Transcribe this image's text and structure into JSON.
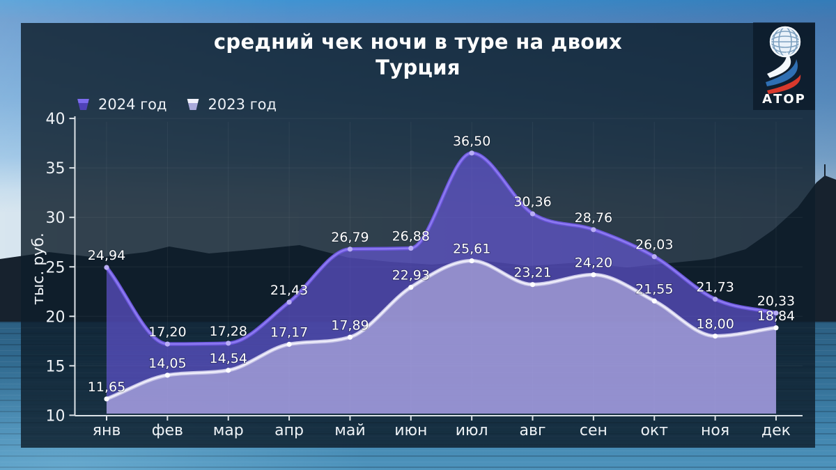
{
  "title": {
    "line1": "средний чек ночи в туре на двоих",
    "line2": "Турция"
  },
  "logo": {
    "text": "АТОР",
    "flag_colors": [
      "#ffffff",
      "#2f6fb3",
      "#d8392c"
    ]
  },
  "legend": [
    {
      "label": "2024 год",
      "swatch_top": "#7c6bee",
      "swatch_bottom": "#4f42b8"
    },
    {
      "label": "2023 год",
      "swatch_top": "#f2f2fb",
      "swatch_bottom": "#a9a9da"
    }
  ],
  "chart_data": {
    "type": "area",
    "title": "средний чек ночи в туре на двоих — Турция",
    "x": [
      "янв",
      "фев",
      "мар",
      "апр",
      "май",
      "июн",
      "июл",
      "авг",
      "сен",
      "окт",
      "ноя",
      "дек"
    ],
    "series": [
      {
        "name": "2024 год",
        "line_color": "#6a55d9",
        "line_highlight": "#8d7bf2",
        "marker_color": "#b9adf6",
        "fill_color": "rgba(109,90,231,0.60)",
        "values": [
          24.94,
          17.2,
          17.28,
          21.43,
          26.79,
          26.88,
          36.5,
          30.36,
          28.76,
          26.03,
          21.73,
          20.33
        ]
      },
      {
        "name": "2023 год",
        "line_color": "#c6c3e6",
        "line_highlight": "#efeefa",
        "marker_color": "#ffffff",
        "fill_color": "rgba(201,197,238,0.58)",
        "values": [
          11.65,
          14.05,
          14.54,
          17.17,
          17.89,
          22.93,
          25.61,
          23.21,
          24.2,
          21.55,
          18.0,
          18.84
        ]
      }
    ],
    "ylabel": "тыс. руб.",
    "yticks": [
      10,
      15,
      20,
      25,
      30,
      35,
      40
    ],
    "ylim": [
      10,
      40
    ],
    "decimal_separator": ",",
    "grid": true,
    "legend_position": "top-left",
    "value_labels": true
  }
}
